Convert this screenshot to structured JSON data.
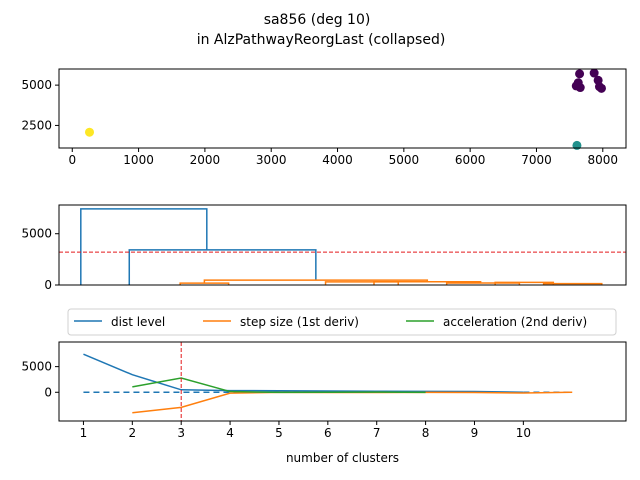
{
  "figure": {
    "title_line1": "sa856 (deg 10)",
    "title_line2": "in AlzPathwayReorgLast (collapsed)"
  },
  "chart_data": [
    {
      "type": "scatter",
      "xlim": [
        -200,
        8350
      ],
      "ylim": [
        1100,
        6000
      ],
      "x_ticks": [
        0,
        1000,
        2000,
        3000,
        4000,
        5000,
        6000,
        7000,
        8000
      ],
      "y_ticks": [
        2500,
        5000
      ],
      "points": [
        {
          "x": 260,
          "y": 2080,
          "cluster": 3
        },
        {
          "x": 7610,
          "y": 1260,
          "cluster": 2
        },
        {
          "x": 7650,
          "y": 5700,
          "cluster": 1
        },
        {
          "x": 7630,
          "y": 5150,
          "cluster": 1
        },
        {
          "x": 7600,
          "y": 4950,
          "cluster": 1
        },
        {
          "x": 7660,
          "y": 4850,
          "cluster": 1
        },
        {
          "x": 7870,
          "y": 5750,
          "cluster": 1
        },
        {
          "x": 7930,
          "y": 5300,
          "cluster": 1
        },
        {
          "x": 7950,
          "y": 4900,
          "cluster": 1
        },
        {
          "x": 7980,
          "y": 4800,
          "cluster": 1
        }
      ],
      "cluster_colors": {
        "1": "#440154",
        "2": "#21918c",
        "3": "#fde725"
      }
    },
    {
      "type": "dendrogram",
      "ylim": [
        0,
        7800
      ],
      "y_ticks": [
        0,
        5000
      ],
      "threshold": 3200,
      "threshold_color": "#e41a1c",
      "links": [
        {
          "x1": 4.5,
          "x2": 30.5,
          "y1a": 0,
          "y1b": 3420,
          "h": 7420,
          "color": "#1f77b4"
        },
        {
          "x1": 14.5,
          "x2": 53,
          "y1a": 0,
          "y1b": 480,
          "h": 3420,
          "color": "#1f77b4"
        },
        {
          "x1": 25,
          "x2": 35,
          "y1a": 0,
          "y1b": 0,
          "h": 180,
          "color": "#ff7f0e"
        },
        {
          "x1": 30,
          "x2": 76,
          "y1a": 180,
          "y1b": 300,
          "h": 480,
          "color": "#ff7f0e"
        },
        {
          "x1": 55,
          "x2": 70,
          "y1a": 0,
          "y1b": 0,
          "h": 300,
          "color": "#ff7f0e"
        },
        {
          "x1": 65,
          "x2": 87,
          "y1a": 0,
          "y1b": 200,
          "h": 320,
          "color": "#ff7f0e"
        },
        {
          "x1": 80,
          "x2": 95,
          "y1a": 0,
          "y1b": 0,
          "h": 200,
          "color": "#ff7f0e"
        },
        {
          "x1": 90,
          "x2": 102,
          "y1a": 0,
          "y1b": 0,
          "h": 250,
          "color": "#ff7f0e"
        },
        {
          "x1": 100,
          "x2": 112,
          "y1a": 0,
          "y1b": 0,
          "h": 140,
          "color": "#ff7f0e"
        }
      ],
      "xlim": [
        0,
        117
      ]
    },
    {
      "type": "line",
      "xlabel": "number of clusters",
      "xlim": [
        0.5,
        12.1
      ],
      "ylim": [
        -5600,
        9800
      ],
      "x_ticks": [
        1,
        2,
        3,
        4,
        5,
        6,
        7,
        8,
        9,
        10
      ],
      "y_ticks": [
        0,
        5000
      ],
      "vline_x": 3,
      "vline_color": "#e41a1c",
      "hline_y": 0,
      "series": [
        {
          "name": "dist level",
          "color": "#1f77b4",
          "x": [
            1,
            2,
            3,
            4,
            5,
            6,
            7,
            8,
            9,
            10
          ],
          "y": [
            7420,
            3420,
            480,
            320,
            300,
            250,
            200,
            180,
            140,
            0
          ]
        },
        {
          "name": "step size (1st deriv)",
          "color": "#ff7f0e",
          "x": [
            2,
            3,
            4,
            5,
            6,
            7,
            8,
            9,
            10,
            11
          ],
          "y": [
            -4000,
            -2940,
            -160,
            -20,
            -50,
            -50,
            -20,
            -40,
            -140,
            0
          ]
        },
        {
          "name": "acceleration (2nd deriv)",
          "color": "#2ca02c",
          "x": [
            2,
            3,
            4,
            5,
            6,
            7,
            8
          ],
          "y": [
            1060,
            2780,
            140,
            -30,
            0,
            30,
            -20
          ]
        }
      ]
    }
  ]
}
